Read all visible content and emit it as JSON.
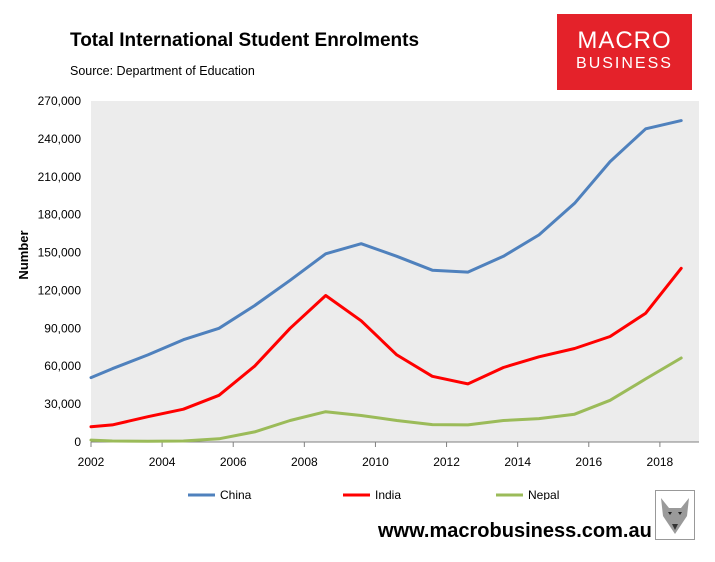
{
  "header": {
    "title": "Total International Student Enrolments",
    "subtitle": "Source: Department of Education"
  },
  "logo": {
    "line1": "MACRO",
    "line2": "BUSINESS",
    "color": "#e4222a"
  },
  "footer": {
    "url": "www.macrobusiness.com.au"
  },
  "chart_data": {
    "type": "line",
    "title": "Total International Student Enrolments",
    "ylabel": "Number",
    "xlabel": "",
    "xlim": [
      2002,
      2019.1
    ],
    "ylim": [
      0,
      270000
    ],
    "x_ticks": [
      "2002",
      "2004",
      "2006",
      "2008",
      "2010",
      "2012",
      "2014",
      "2016",
      "2018"
    ],
    "y_ticks": [
      "0",
      "30,000",
      "60,000",
      "90,000",
      "120,000",
      "150,000",
      "180,000",
      "210,000",
      "240,000",
      "270,000"
    ],
    "grid": false,
    "legend": "bottom",
    "x": [
      2002,
      2002.6,
      2003.6,
      2004.6,
      2005.6,
      2006.6,
      2007.6,
      2008.6,
      2009.6,
      2010.6,
      2011.6,
      2012.6,
      2013.6,
      2014.6,
      2015.6,
      2016.6,
      2017.6,
      2018.6
    ],
    "series": [
      {
        "name": "China",
        "color": "#4f81bd",
        "values": [
          51000,
          58000,
          69000,
          81000,
          90000,
          108000,
          128000,
          149000,
          157000,
          147000,
          136000,
          134500,
          147000,
          164000,
          189000,
          222000,
          248000,
          254500
        ]
      },
      {
        "name": "India",
        "color": "#ff0000",
        "values": [
          12000,
          13500,
          20000,
          26000,
          37000,
          60000,
          90000,
          116000,
          96000,
          69000,
          52000,
          46000,
          59000,
          67500,
          74000,
          83500,
          102000,
          137500
        ]
      },
      {
        "name": "Nepal",
        "color": "#9bbb59",
        "values": [
          1500,
          800,
          600,
          800,
          2500,
          8000,
          17000,
          24000,
          21000,
          17000,
          13800,
          13500,
          17000,
          18500,
          22000,
          33000,
          50000,
          66500
        ]
      }
    ]
  }
}
